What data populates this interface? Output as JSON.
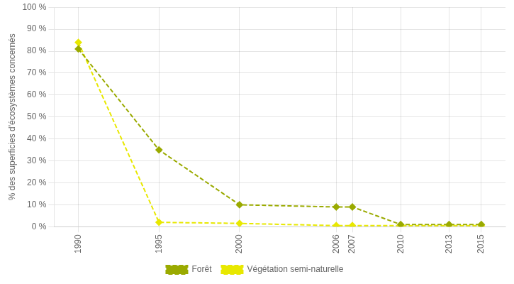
{
  "chart_data": {
    "type": "line",
    "x": [
      1990,
      1995,
      2000,
      2006,
      2007,
      2010,
      2013,
      2015
    ],
    "series": [
      {
        "name": "Forêt",
        "color": "#9aaa00",
        "values": [
          81,
          35,
          10,
          9,
          9,
          1,
          1,
          1
        ],
        "marker": "diamond",
        "line_style": "dashed"
      },
      {
        "name": "Végétation semi-naturelle",
        "color": "#e8e800",
        "values": [
          84,
          2,
          1.5,
          0.5,
          0.5,
          0.5,
          0.5,
          0.5
        ],
        "marker": "diamond",
        "line_style": "dashed"
      }
    ],
    "y_label": "% des superficies d'écosystèmes concernés",
    "xlim": [
      1988.5,
      2016.5
    ],
    "xticks": [
      1990,
      1995,
      2000,
      2006,
      2007,
      2010,
      2013,
      2015
    ],
    "ylim": [
      0,
      100
    ],
    "yticks": [
      {
        "value": 0,
        "label": "0 %"
      },
      {
        "value": 10,
        "label": "10 %"
      },
      {
        "value": 20,
        "label": "20 %"
      },
      {
        "value": 30,
        "label": "30 %"
      },
      {
        "value": 40,
        "label": "40 %"
      },
      {
        "value": 50,
        "label": "50 %"
      },
      {
        "value": 60,
        "label": "60 %"
      },
      {
        "value": 70,
        "label": "70 %"
      },
      {
        "value": 80,
        "label": "80 %"
      },
      {
        "value": 90,
        "label": "90 %"
      },
      {
        "value": 100,
        "label": "100 %"
      }
    ],
    "grid": true,
    "legend": "bottom"
  }
}
